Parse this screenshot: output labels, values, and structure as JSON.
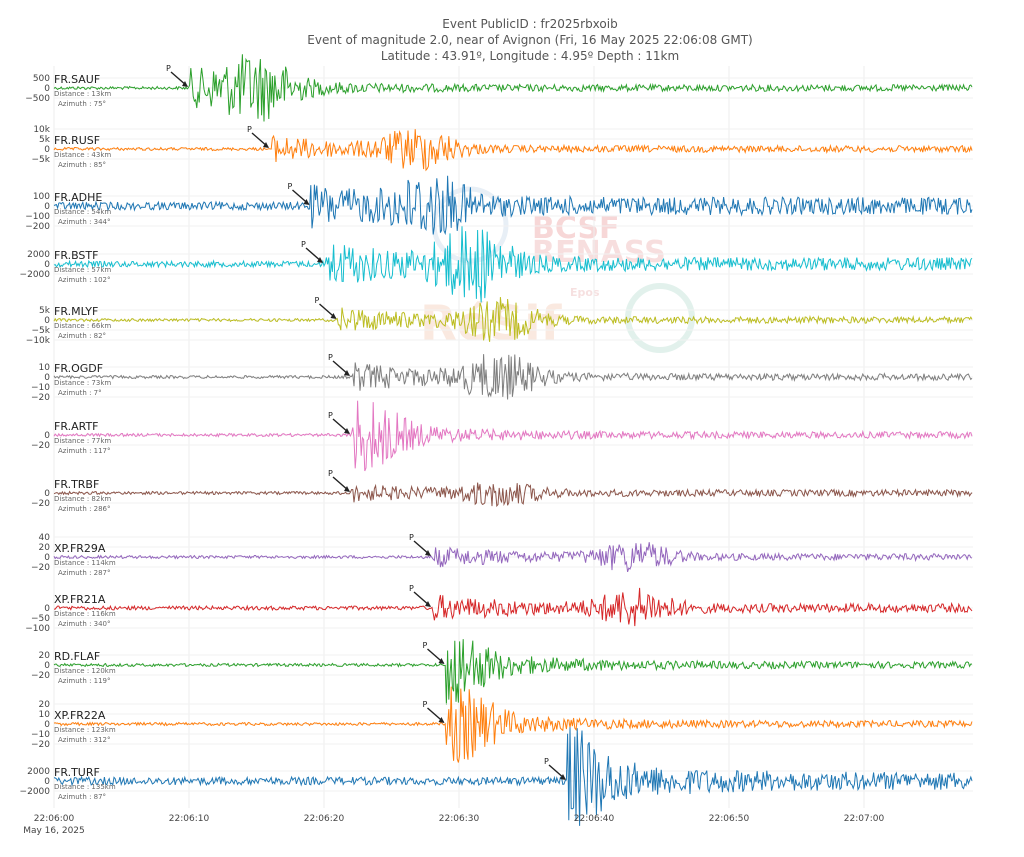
{
  "header": {
    "line1": "Event PublicID : fr2025rbxoib",
    "line2": "Event of magnitude 2.0, near of Avignon (Fri, 16 May 2025 22:06:08 GMT)",
    "line3": "Latitude : 43.91º, Longitude : 4.95º Depth : 11km"
  },
  "watermark": {
    "text1": "BCSF",
    "text2": "RENASS",
    "text3": "Epos",
    "text4": "RéSif"
  },
  "chart_data": {
    "type": "line",
    "x_ticks": [
      "22:06:00",
      "22:06:10",
      "22:06:20",
      "22:06:30",
      "22:06:40",
      "22:06:50",
      "22:07:00"
    ],
    "x_date_label": "May 16, 2025",
    "xlim": [
      "22:06:00",
      "22:07:10"
    ],
    "grid": true,
    "series": [
      {
        "name": "FR.SAUF",
        "distance": "Distance : 13km",
        "azimuth": "Azimuth : 75°",
        "color": "#2ca02c",
        "p_arrival": "22:06:10",
        "yticks": [
          "500",
          "0",
          "−500"
        ],
        "peak_s": 15
      },
      {
        "name": "FR.RUSF",
        "distance": "Distance : 43km",
        "azimuth": "Azimuth : 85°",
        "color": "#ff7f0e",
        "p_arrival": "22:06:16",
        "yticks": [
          "10k",
          "5k",
          "0",
          "−5k"
        ],
        "peak_s": 27
      },
      {
        "name": "FR.ADHE",
        "distance": "Distance : 54km",
        "azimuth": "Azimuth : 344°",
        "color": "#1f77b4",
        "p_arrival": "22:06:19",
        "yticks": [
          "100",
          "0",
          "−100",
          "−200"
        ],
        "peak_s": 28
      },
      {
        "name": "FR.BSTF",
        "distance": "Distance : 57km",
        "azimuth": "Azimuth : 102°",
        "color": "#17becf",
        "p_arrival": "22:06:20",
        "yticks": [
          "2000",
          "0",
          "−2000"
        ],
        "peak_s": 31
      },
      {
        "name": "FR.MLYF",
        "distance": "Distance : 66km",
        "azimuth": "Azimuth : 82°",
        "color": "#bcbd22",
        "p_arrival": "22:06:21",
        "yticks": [
          "5k",
          "0",
          "−5k",
          "−10k"
        ],
        "peak_s": 33
      },
      {
        "name": "FR.OGDF",
        "distance": "Distance : 73km",
        "azimuth": "Azimuth : 7°",
        "color": "#7f7f7f",
        "p_arrival": "22:06:22",
        "yticks": [
          "10",
          "0",
          "−10",
          "−20"
        ],
        "peak_s": 33
      },
      {
        "name": "FR.ARTF",
        "distance": "Distance : 77km",
        "azimuth": "Azimuth : 117°",
        "color": "#e377c2",
        "p_arrival": "22:06:22",
        "yticks": [
          "0",
          "−20"
        ],
        "peak_s": 23
      },
      {
        "name": "FR.TRBF",
        "distance": "Distance : 82km",
        "azimuth": "Azimuth : 286°",
        "color": "#8c564b",
        "p_arrival": "22:06:22",
        "yticks": [
          "0",
          "−20"
        ],
        "peak_s": 33
      },
      {
        "name": "XP.FR29A",
        "distance": "Distance : 114km",
        "azimuth": "Azimuth : 287°",
        "color": "#9467bd",
        "p_arrival": "22:06:28",
        "yticks": [
          "40",
          "20",
          "0",
          "−20"
        ],
        "peak_s": 43
      },
      {
        "name": "XP.FR21A",
        "distance": "Distance : 116km",
        "azimuth": "Azimuth : 340°",
        "color": "#d62728",
        "p_arrival": "22:06:28",
        "yticks": [
          "0",
          "−50",
          "−100"
        ],
        "peak_s": 43
      },
      {
        "name": "RD.FLAF",
        "distance": "Distance : 120km",
        "azimuth": "Azimuth : 119°",
        "color": "#2ca02c",
        "p_arrival": "22:06:29",
        "yticks": [
          "20",
          "0",
          "−20"
        ],
        "peak_s": 29
      },
      {
        "name": "XP.FR22A",
        "distance": "Distance : 123km",
        "azimuth": "Azimuth : 312°",
        "color": "#ff7f0e",
        "p_arrival": "22:06:29",
        "yticks": [
          "20",
          "10",
          "0",
          "−10",
          "−20"
        ],
        "peak_s": 30
      },
      {
        "name": "FR.TURF",
        "distance": "Distance : 135km",
        "azimuth": "Azimuth : 87°",
        "color": "#1f77b4",
        "p_arrival": "22:06:38",
        "yticks": [
          "2000",
          "0",
          "−2000"
        ],
        "peak_s": 38
      }
    ]
  }
}
